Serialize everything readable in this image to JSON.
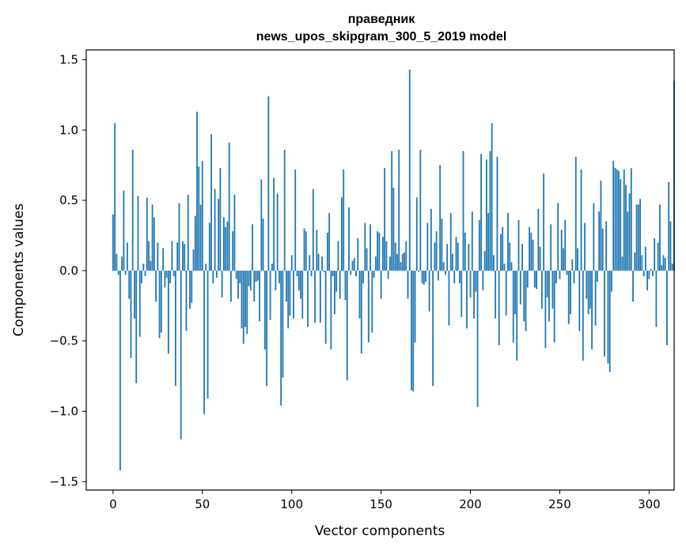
{
  "chart_data": {
    "type": "bar",
    "title": "праведник",
    "subtitle": "news_upos_skipgram_300_5_2019 model",
    "xlabel": "Vector components",
    "ylabel": "Components values",
    "xlim": [
      -15,
      314
    ],
    "ylim": [
      -1.56,
      1.57
    ],
    "xticks": [
      0,
      50,
      100,
      150,
      200,
      250,
      300
    ],
    "yticks": [
      -1.5,
      -1.0,
      -0.5,
      0.0,
      0.5,
      1.0,
      1.5
    ],
    "ytick_labels": [
      "−1.5",
      "−1.0",
      "−0.5",
      "0.0",
      "0.5",
      "1.0",
      "1.5"
    ],
    "xtick_labels": [
      "0",
      "50",
      "100",
      "150",
      "200",
      "250",
      "300"
    ],
    "bar_color": "#1f77b4",
    "grid": false,
    "x_start": 0,
    "values": [
      0.4,
      1.05,
      0.12,
      -0.03,
      -1.42,
      0.1,
      0.57,
      -0.03,
      0.2,
      -0.2,
      -0.62,
      0.86,
      -0.34,
      -0.8,
      0.53,
      -0.47,
      -0.09,
      0.05,
      -0.04,
      0.52,
      0.21,
      0.07,
      0.47,
      0.38,
      -0.22,
      0.2,
      -0.48,
      -0.44,
      0.16,
      -0.12,
      -0.05,
      -0.59,
      -0.09,
      0.21,
      -0.04,
      -0.82,
      0.2,
      0.48,
      -1.2,
      0.21,
      0.19,
      -0.43,
      0.54,
      -0.27,
      -0.23,
      0.15,
      0.39,
      1.13,
      0.74,
      0.47,
      0.78,
      -1.02,
      0.05,
      -0.91,
      0.34,
      0.97,
      -0.09,
      0.58,
      -0.05,
      0.51,
      0.73,
      -0.19,
      0.38,
      0.31,
      0.35,
      0.91,
      -0.22,
      0.28,
      0.54,
      -0.06,
      -0.2,
      -0.09,
      -0.41,
      -0.52,
      -0.4,
      -0.45,
      -0.11,
      -0.14,
      0.33,
      -0.22,
      -0.08,
      -0.07,
      -0.36,
      0.65,
      0.37,
      -0.56,
      -0.82,
      1.24,
      -0.35,
      0.05,
      0.66,
      -0.14,
      0.55,
      -0.09,
      -0.96,
      -0.76,
      0.86,
      -0.22,
      -0.41,
      -0.32,
      0.11,
      -0.34,
      0.72,
      -0.04,
      -0.14,
      -0.2,
      -0.34,
      0.3,
      0.28,
      -0.4,
      0.11,
      -0.04,
      0.58,
      -0.37,
      0.29,
      0.12,
      -0.37,
      0.1,
      -0.01,
      -0.52,
      0.27,
      0.41,
      -0.56,
      -0.04,
      -0.31,
      -0.15,
      0.21,
      -0.2,
      0.52,
      0.72,
      -0.21,
      -0.78,
      0.45,
      -0.03,
      0.07,
      0.09,
      -0.04,
      0.23,
      -0.34,
      -0.59,
      -0.09,
      0.34,
      0.16,
      -0.51,
      0.33,
      -0.44,
      -0.05,
      0.1,
      0.28,
      0.27,
      -0.2,
      0.24,
      0.73,
      0.21,
      -0.06,
      0.1,
      0.85,
      0.59,
      0.2,
      0.12,
      0.86,
      0.06,
      0.12,
      0.13,
      0.21,
      -0.2,
      1.43,
      -0.85,
      -0.86,
      -0.51,
      0.52,
      -0.01,
      0.86,
      -0.09,
      -0.1,
      -0.08,
      0.34,
      -0.29,
      0.44,
      -0.82,
      0.2,
      0.28,
      -0.07,
      0.75,
      0.37,
      0.06,
      -0.03,
      0.19,
      -0.39,
      0.41,
      0.12,
      -0.09,
      0.24,
      0.2,
      -0.09,
      -0.33,
      0.85,
      0.27,
      -0.41,
      0.19,
      -0.19,
      0.42,
      -0.34,
      -0.15,
      -0.97,
      0.36,
      0.83,
      -0.14,
      0.14,
      0.79,
      0.41,
      0.85,
      1.05,
      0.11,
      -0.34,
      0.81,
      -0.53,
      0.26,
      0.31,
      0.05,
      -0.32,
      0.41,
      0.2,
      0.06,
      -0.51,
      -0.31,
      -0.64,
      0.36,
      -0.24,
      0.19,
      -0.36,
      -0.43,
      -0.12,
      0.31,
      0.27,
      0.22,
      -0.12,
      -0.13,
      0.44,
      0.17,
      -0.27,
      0.69,
      -0.55,
      -0.19,
      -0.36,
      0.33,
      -0.27,
      -0.51,
      -0.09,
      0.48,
      -0.06,
      0.29,
      0.16,
      0.36,
      -0.03,
      -0.38,
      -0.31,
      0.08,
      -0.09,
      0.81,
      0.16,
      -0.43,
      0.72,
      -0.64,
      0.34,
      -0.2,
      -0.31,
      -0.27,
      -0.56,
      0.48,
      -0.39,
      -0.08,
      0.42,
      0.64,
      0.3,
      -0.61,
      0.35,
      -0.66,
      -0.72,
      -0.15,
      0.78,
      0.73,
      0.72,
      0.71,
      0.65,
      0.1,
      0.72,
      0.61,
      0.42,
      0.55,
      0.73,
      -0.22,
      0.13,
      0.47,
      0.47,
      0.51,
      0.11,
      -0.04,
      0.17,
      -0.14,
      -0.06,
      0.01,
      -0.04,
      0.23,
      -0.4,
      0.2,
      0.47,
      0.04,
      0.11,
      0.09,
      -0.53,
      0.63,
      0.35,
      0.05,
      1.35
    ]
  }
}
